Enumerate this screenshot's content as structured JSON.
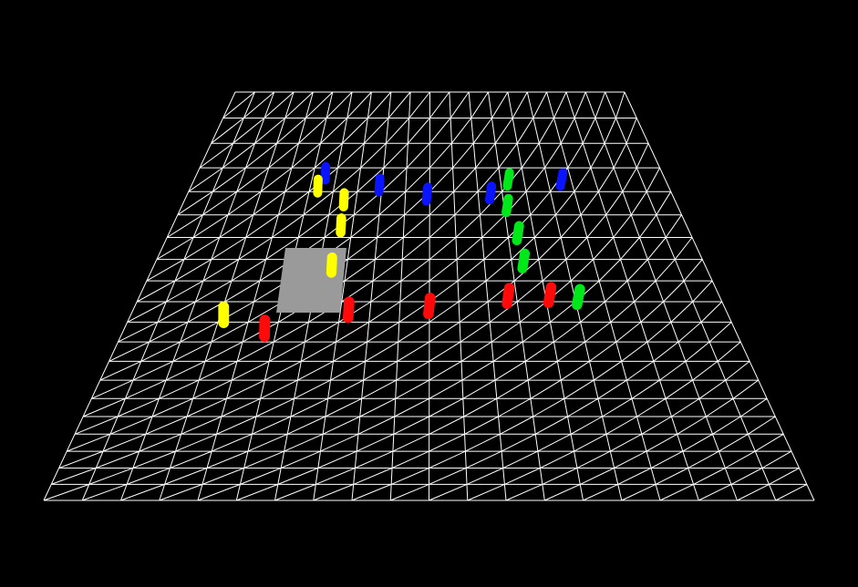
{
  "scene": {
    "background_color": "#000000",
    "floor": {
      "grid_color": "#ffffff",
      "grid_divisions": 20,
      "triangulated": true
    },
    "obstacle": {
      "shape": "box",
      "color": "#9a9a9a"
    },
    "pieces": [
      {
        "team": "blue",
        "color": "#0a14ff",
        "u": 5.6,
        "v": 3.7
      },
      {
        "team": "blue",
        "color": "#0a14ff",
        "u": 7.9,
        "v": 4.2
      },
      {
        "team": "blue",
        "color": "#0a14ff",
        "u": 9.85,
        "v": 4.6
      },
      {
        "team": "blue",
        "color": "#0a14ff",
        "u": 12.4,
        "v": 4.55
      },
      {
        "team": "blue",
        "color": "#0a14ff",
        "u": 15.4,
        "v": 3.95
      },
      {
        "team": "yellow",
        "color": "#ffff00",
        "u": 5.4,
        "v": 4.25
      },
      {
        "team": "yellow",
        "color": "#ffff00",
        "u": 6.55,
        "v": 4.85
      },
      {
        "team": "yellow",
        "color": "#ffff00",
        "u": 6.6,
        "v": 6.0
      },
      {
        "team": "yellow",
        "color": "#ffff00",
        "u": 6.5,
        "v": 7.85
      },
      {
        "team": "yellow",
        "color": "#ffff00",
        "u": 3.25,
        "v": 10.3
      },
      {
        "team": "green",
        "color": "#00e81a",
        "u": 13.2,
        "v": 3.95
      },
      {
        "team": "green",
        "color": "#00e81a",
        "u": 13.0,
        "v": 5.1
      },
      {
        "team": "green",
        "color": "#00e81a",
        "u": 13.25,
        "v": 6.35
      },
      {
        "team": "green",
        "color": "#00e81a",
        "u": 13.3,
        "v": 7.65
      },
      {
        "team": "green",
        "color": "#00e81a",
        "u": 14.95,
        "v": 9.4
      },
      {
        "team": "red",
        "color": "#ff0a0a",
        "u": 4.7,
        "v": 11.0
      },
      {
        "team": "red",
        "color": "#ff0a0a",
        "u": 7.3,
        "v": 10.05
      },
      {
        "team": "red",
        "color": "#ff0a0a",
        "u": 9.95,
        "v": 9.85
      },
      {
        "team": "red",
        "color": "#ff0a0a",
        "u": 12.6,
        "v": 9.35
      },
      {
        "team": "red",
        "color": "#ff0a0a",
        "u": 14.0,
        "v": 9.3
      }
    ]
  }
}
